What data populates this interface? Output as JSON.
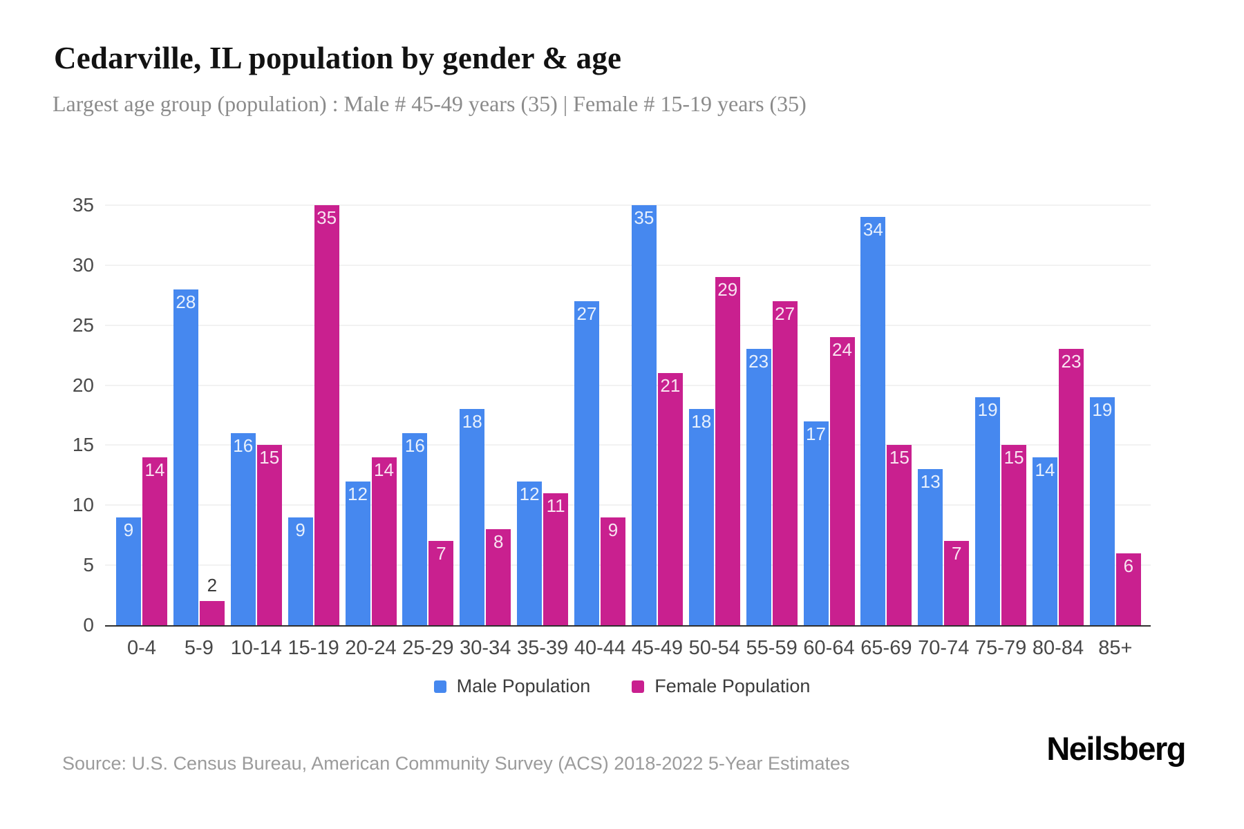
{
  "header": {
    "title": "Cedarville, IL population by gender & age",
    "subtitle": "Largest age group (population) : Male # 45-49 years (35) | Female # 15-19 years (35)"
  },
  "chart_data": {
    "type": "bar",
    "title": "Cedarville, IL population by gender & age",
    "xlabel": "",
    "ylabel": "",
    "categories": [
      "0-4",
      "5-9",
      "10-14",
      "15-19",
      "20-24",
      "25-29",
      "30-34",
      "35-39",
      "40-44",
      "45-49",
      "50-54",
      "55-59",
      "60-64",
      "65-69",
      "70-74",
      "75-79",
      "80-84",
      "85+"
    ],
    "series": [
      {
        "name": "Male Population",
        "color": "#4688ef",
        "values": [
          9,
          28,
          16,
          9,
          12,
          16,
          18,
          12,
          27,
          35,
          18,
          23,
          17,
          34,
          13,
          19,
          14,
          19
        ]
      },
      {
        "name": "Female Population",
        "color": "#c9208f",
        "values": [
          14,
          2,
          15,
          35,
          14,
          7,
          8,
          11,
          9,
          21,
          29,
          27,
          24,
          15,
          7,
          15,
          23,
          6
        ]
      }
    ],
    "ylim": [
      0,
      35
    ],
    "yticks": [
      0,
      5,
      10,
      15,
      20,
      25,
      30,
      35
    ],
    "grid": true,
    "legend_position": "bottom",
    "bar_value_labels": true,
    "label_outside_threshold": 2
  },
  "footer": {
    "source": "Source: U.S. Census Bureau, American Community Survey (ACS) 2018-2022 5-Year Estimates",
    "brand": "Neilsberg"
  }
}
